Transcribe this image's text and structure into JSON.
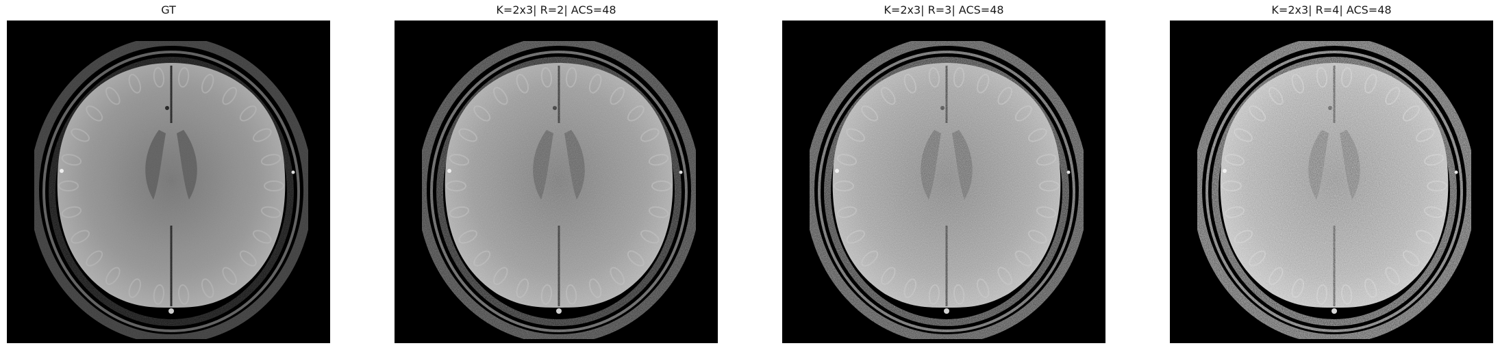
{
  "figure": {
    "panels": [
      {
        "title": "GT",
        "noise_level": 0.05,
        "brightness": 1.0
      },
      {
        "title": "K=2x3| R=2| ACS=48",
        "noise_level": 0.18,
        "brightness": 1.02
      },
      {
        "title": "K=2x3| R=3| ACS=48",
        "noise_level": 0.32,
        "brightness": 1.05
      },
      {
        "title": "K=2x3| R=4| ACS=48",
        "noise_level": 0.5,
        "brightness": 1.1
      }
    ],
    "image_subject": "axial-brain-mri-slice",
    "colormap": "gray"
  }
}
